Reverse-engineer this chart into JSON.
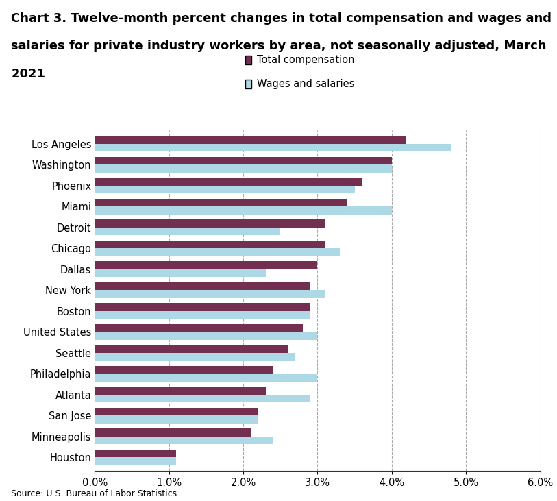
{
  "title_line1": "Chart 3. Twelve-month percent changes in total compensation and wages and",
  "title_line2": "salaries for private industry workers by area, not seasonally adjusted, March",
  "title_line3": "2021",
  "source": "Source: U.S. Bureau of Labor Statistics.",
  "legend_labels": [
    "Total compensation",
    "Wages and salaries"
  ],
  "categories": [
    "Houston",
    "Minneapolis",
    "San Jose",
    "Atlanta",
    "Philadelphia",
    "Seattle",
    "United States",
    "Boston",
    "New York",
    "Dallas",
    "Chicago",
    "Detroit",
    "Miami",
    "Phoenix",
    "Washington",
    "Los Angeles"
  ],
  "total_compensation": [
    1.1,
    2.1,
    2.2,
    2.3,
    2.4,
    2.6,
    2.8,
    2.9,
    2.9,
    3.0,
    3.1,
    3.1,
    3.4,
    3.6,
    4.0,
    4.2
  ],
  "wages_and_salaries": [
    1.1,
    2.4,
    2.2,
    2.9,
    3.0,
    2.7,
    3.0,
    2.9,
    3.1,
    2.3,
    3.3,
    2.5,
    4.0,
    3.5,
    4.0,
    4.8
  ],
  "xlim": [
    0,
    6.0
  ],
  "xticks": [
    0.0,
    1.0,
    2.0,
    3.0,
    4.0,
    5.0,
    6.0
  ],
  "bar_color_comp": "#722F4F",
  "bar_color_wages": "#ADD8E6",
  "background_color": "#ffffff",
  "grid_color": "#aaaaaa",
  "title_fontsize": 13,
  "axis_fontsize": 10.5,
  "source_fontsize": 9,
  "bar_height": 0.38,
  "figsize": [
    8.13,
    7.31
  ]
}
